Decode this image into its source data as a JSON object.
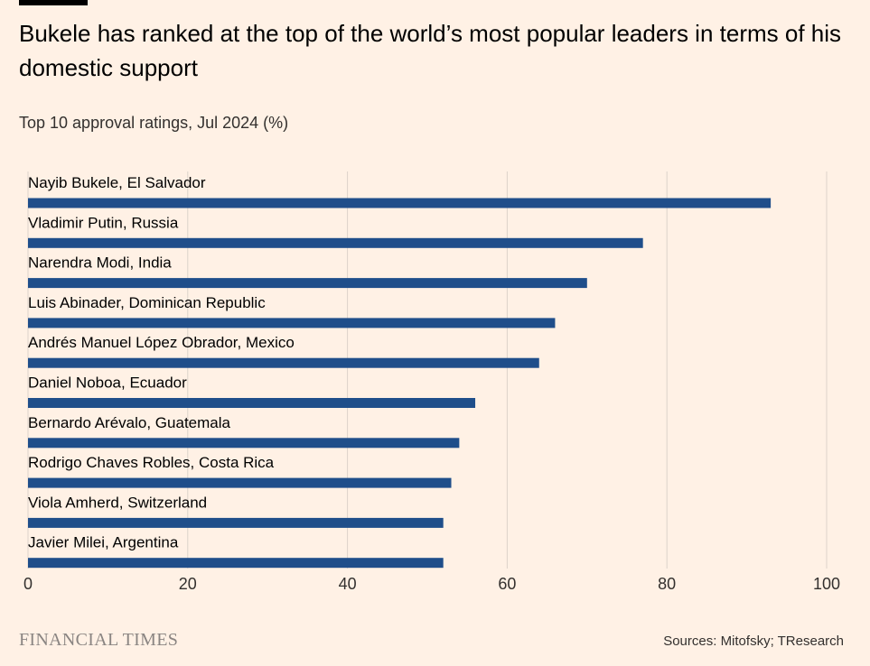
{
  "header": {
    "title": "Bukele has ranked at the top of the world’s most popular leaders in terms of his domestic support",
    "subtitle": "Top 10 approval ratings, Jul 2024 (%)"
  },
  "footer": {
    "brand": "FINANCIAL TIMES",
    "source": "Sources: Mitofsky; TResearch"
  },
  "colors": {
    "background": "#fff1e5",
    "bar": "#1f4e8a",
    "gridline": "#dcd2ca",
    "text": "#33302e"
  },
  "chart_data": {
    "type": "bar",
    "orientation": "horizontal",
    "title": "Bukele has ranked at the top of the world’s most popular leaders in terms of his domestic support",
    "subtitle": "Top 10 approval ratings, Jul 2024 (%)",
    "xlabel": "",
    "ylabel": "",
    "xlim": [
      0,
      100
    ],
    "xticks": [
      0,
      20,
      40,
      60,
      80,
      100
    ],
    "grid": true,
    "categories": [
      "Nayib Bukele, El Salvador",
      "Vladimir Putin, Russia",
      "Narendra Modi, India",
      "Luis Abinader, Dominican Republic",
      "Andrés Manuel López Obrador, Mexico",
      "Daniel Noboa, Ecuador",
      "Bernardo Arévalo, Guatemala",
      "Rodrigo Chaves Robles, Costa Rica",
      "Viola Amherd, Switzerland",
      "Javier Milei, Argentina"
    ],
    "values": [
      93,
      77,
      70,
      66,
      64,
      56,
      54,
      53,
      52,
      52
    ]
  }
}
